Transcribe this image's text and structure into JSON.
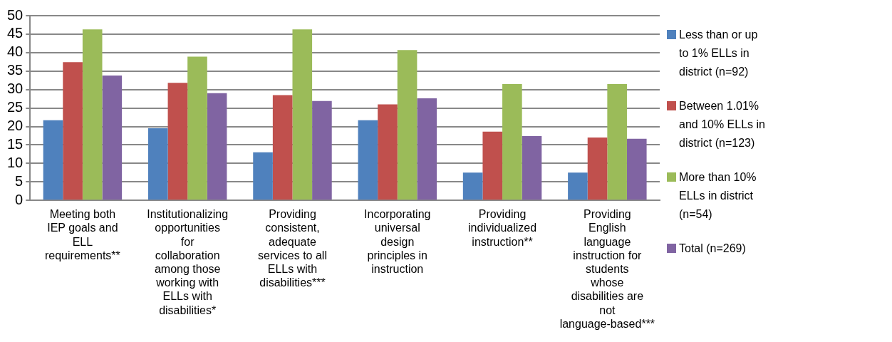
{
  "chart_data": {
    "type": "bar",
    "categories": [
      "Meeting both IEP goals and ELL requirements**",
      "Institutionalizing opportunities for collaboration among those working with ELLs with disabilities*",
      "Providing consistent, adequate services to all ELLs with disabilities***",
      "Incorporating universal design principles in instruction",
      "Providing individualized instruction**",
      "Providing English language instruction for students whose disabilities are not language-based***"
    ],
    "series": [
      {
        "name": "Less than or up to 1% ELLs in district (n=92)",
        "color": "#4f81bd",
        "values": [
          21.7,
          19.5,
          13.0,
          21.7,
          7.5,
          7.5
        ]
      },
      {
        "name": "Between 1.01% and 10% ELLs in district (n=123)",
        "color": "#c0504d",
        "values": [
          37.4,
          31.8,
          28.5,
          26.0,
          18.6,
          17.0
        ]
      },
      {
        "name": "More than 10% ELLs in district (n=54)",
        "color": "#9bbb59",
        "values": [
          46.3,
          38.9,
          46.3,
          40.7,
          31.5,
          31.5
        ]
      },
      {
        "name": "Total (n=269)",
        "color": "#8064a2",
        "values": [
          33.8,
          29.0,
          26.9,
          27.6,
          17.4,
          16.7
        ]
      }
    ],
    "ylim": [
      0,
      50
    ],
    "yticks": [
      0,
      5,
      10,
      15,
      20,
      25,
      30,
      35,
      40,
      45,
      50
    ],
    "grid": "y",
    "legend": "right"
  }
}
